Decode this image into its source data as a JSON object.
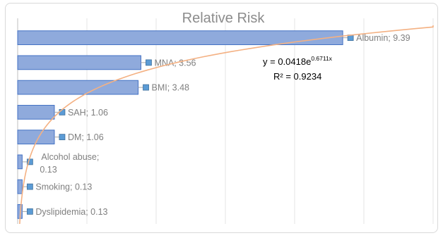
{
  "chart_data": {
    "type": "bar",
    "orientation": "horizontal",
    "title": "Relative Risk",
    "categories": [
      "Albumin",
      "MNA",
      "BMI",
      "SAH",
      "DM",
      "Alcohol abuse",
      "Smoking",
      "Dyslipidemia"
    ],
    "values": [
      9.39,
      3.56,
      3.48,
      1.06,
      1.06,
      0.13,
      0.13,
      0.13
    ],
    "data_labels": [
      "Albumin; 9.39",
      "MNA; 3.56",
      "BMI; 3.48",
      "SAH; 1.06",
      "DM; 1.06",
      "Alcohol abuse; 0.13",
      "Smoking; 0.13",
      "Dyslipidemia; 0.13"
    ],
    "xlim": [
      0,
      12
    ],
    "grid": true,
    "bar_color": "#8faadc",
    "bar_edge_color": "#4472c4",
    "trendline": {
      "type": "exponential",
      "a": 0.0418,
      "b": 0.6711,
      "equation_text": "y = 0.0418e",
      "equation_exponent": "0.6711x",
      "r2_text": "R² = 0.9234",
      "color": "#f4b183"
    }
  }
}
